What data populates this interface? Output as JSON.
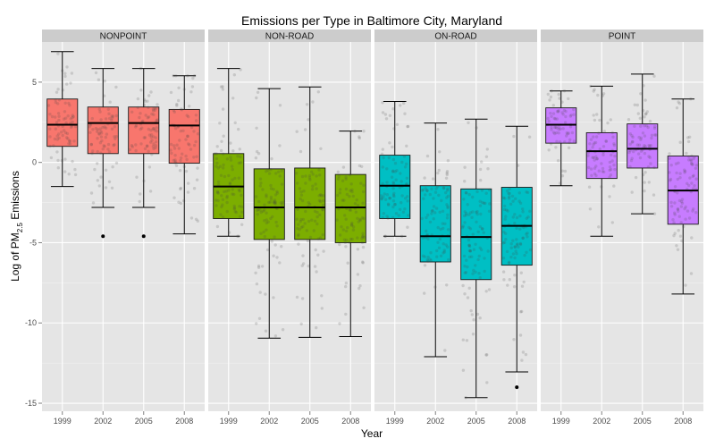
{
  "chart_data": {
    "type": "box",
    "title": "Emissions per Type in Baltimore City, Maryland",
    "xlabel": "Year",
    "ylabel_parts": [
      "Log of PM",
      "2.5",
      " Emissions"
    ],
    "ylim": [
      -15.5,
      7.5
    ],
    "y_ticks": [
      -15,
      -10,
      -5,
      0,
      5
    ],
    "categories": [
      "1999",
      "2002",
      "2005",
      "2008"
    ],
    "panels": [
      {
        "name": "NONPOINT",
        "color": "#F8766D",
        "boxes": [
          {
            "year": "1999",
            "min": -1.5,
            "q1": 1.0,
            "median": 2.35,
            "q3": 3.95,
            "max": 6.9,
            "outliers": []
          },
          {
            "year": "2002",
            "min": -2.8,
            "q1": 0.55,
            "median": 2.45,
            "q3": 3.45,
            "max": 5.85,
            "outliers": [
              -4.6
            ]
          },
          {
            "year": "2005",
            "min": -2.8,
            "q1": 0.55,
            "median": 2.45,
            "q3": 3.45,
            "max": 5.85,
            "outliers": [
              -4.6
            ]
          },
          {
            "year": "2008",
            "min": -4.45,
            "q1": -0.05,
            "median": 2.3,
            "q3": 3.3,
            "max": 5.4,
            "outliers": []
          }
        ]
      },
      {
        "name": "NON-ROAD",
        "color": "#7CAE00",
        "boxes": [
          {
            "year": "1999",
            "min": -4.6,
            "q1": -3.5,
            "median": -1.5,
            "q3": 0.55,
            "max": 5.85,
            "outliers": []
          },
          {
            "year": "2002",
            "min": -10.95,
            "q1": -4.8,
            "median": -2.8,
            "q3": -0.4,
            "max": 4.6,
            "outliers": []
          },
          {
            "year": "2005",
            "min": -10.9,
            "q1": -4.8,
            "median": -2.8,
            "q3": -0.35,
            "max": 4.7,
            "outliers": []
          },
          {
            "year": "2008",
            "min": -10.85,
            "q1": -5.0,
            "median": -2.8,
            "q3": -0.75,
            "max": 1.95,
            "outliers": []
          }
        ]
      },
      {
        "name": "ON-ROAD",
        "color": "#00BFC4",
        "boxes": [
          {
            "year": "1999",
            "min": -4.6,
            "q1": -3.5,
            "median": -1.45,
            "q3": 0.45,
            "max": 3.8,
            "outliers": []
          },
          {
            "year": "2002",
            "min": -12.1,
            "q1": -6.2,
            "median": -4.6,
            "q3": -1.45,
            "max": 2.45,
            "outliers": []
          },
          {
            "year": "2005",
            "min": -14.65,
            "q1": -7.3,
            "median": -4.65,
            "q3": -1.65,
            "max": 2.7,
            "outliers": []
          },
          {
            "year": "2008",
            "min": -13.05,
            "q1": -6.4,
            "median": -3.95,
            "q3": -1.55,
            "max": 2.25,
            "outliers": [
              -14.0
            ]
          }
        ]
      },
      {
        "name": "POINT",
        "color": "#C77CFF",
        "boxes": [
          {
            "year": "1999",
            "min": -1.45,
            "q1": 1.2,
            "median": 2.35,
            "q3": 3.4,
            "max": 4.45,
            "outliers": []
          },
          {
            "year": "2002",
            "min": -4.6,
            "q1": -1.0,
            "median": 0.7,
            "q3": 1.85,
            "max": 4.75,
            "outliers": []
          },
          {
            "year": "2005",
            "min": -3.2,
            "q1": -0.35,
            "median": 0.85,
            "q3": 2.4,
            "max": 5.5,
            "outliers": []
          },
          {
            "year": "2008",
            "min": -8.2,
            "q1": -3.85,
            "median": -1.75,
            "q3": 0.4,
            "max": 3.95,
            "outliers": []
          }
        ]
      }
    ],
    "jitter_points": true,
    "grid": true,
    "legend": "none"
  }
}
